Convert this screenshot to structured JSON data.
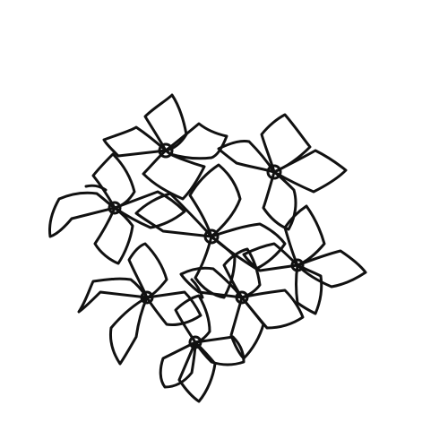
{
  "image": {
    "subject": "line-drawing-flower-cluster",
    "background_color": "#ffffff",
    "line_color": "#111111"
  }
}
